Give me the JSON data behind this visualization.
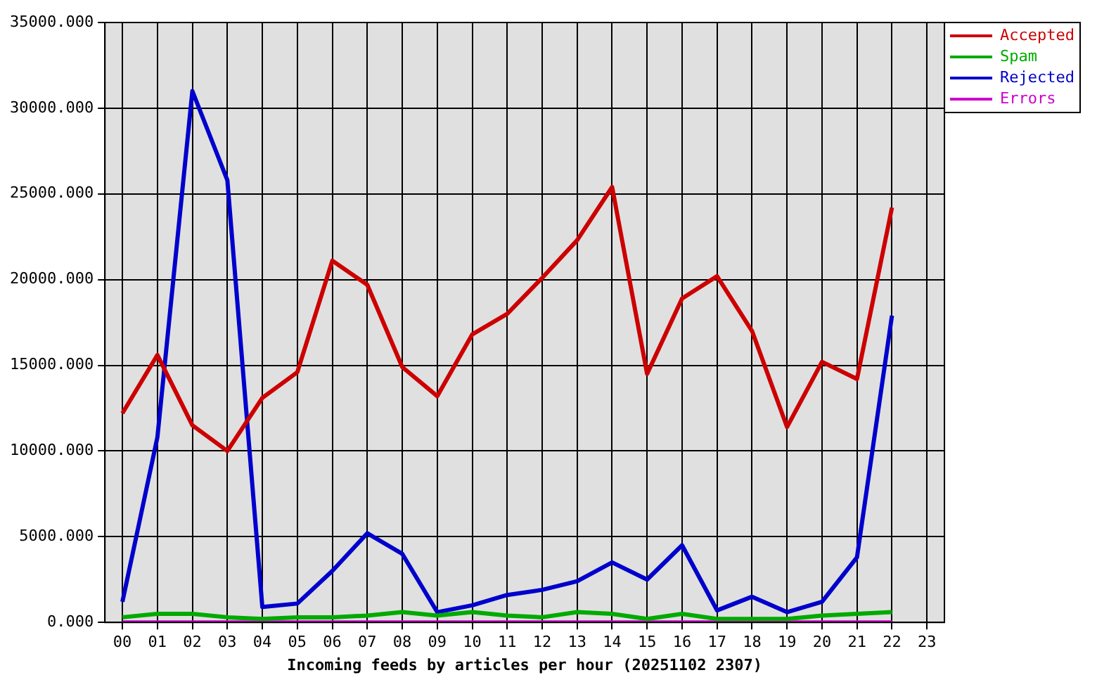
{
  "chart_data": {
    "type": "line",
    "xlabel": "Incoming feeds by articles per hour (20251102 2307)",
    "categories": [
      "00",
      "01",
      "02",
      "03",
      "04",
      "05",
      "06",
      "07",
      "08",
      "09",
      "10",
      "11",
      "12",
      "13",
      "14",
      "15",
      "16",
      "17",
      "18",
      "19",
      "20",
      "21",
      "22",
      "23"
    ],
    "series": [
      {
        "name": "Accepted",
        "color": "#cc0000",
        "values": [
          12200,
          15600,
          11500,
          10000,
          13100,
          14600,
          21100,
          19700,
          14900,
          13200,
          16800,
          18000,
          20100,
          22300,
          25400,
          14500,
          18900,
          20200,
          17000,
          11400,
          15200,
          14200,
          24200,
          null
        ]
      },
      {
        "name": "Spam",
        "color": "#00aa00",
        "values": [
          300,
          500,
          500,
          300,
          200,
          300,
          300,
          400,
          600,
          400,
          600,
          400,
          300,
          600,
          500,
          200,
          500,
          200,
          200,
          200,
          400,
          500,
          600,
          null
        ]
      },
      {
        "name": "Rejected",
        "color": "#0000cc",
        "values": [
          1200,
          10800,
          31000,
          25800,
          900,
          1100,
          3000,
          5200,
          4000,
          600,
          1000,
          1600,
          1900,
          2400,
          3500,
          2500,
          4500,
          700,
          1500,
          600,
          1200,
          3800,
          17900,
          null
        ]
      },
      {
        "name": "Errors",
        "color": "#cc00cc",
        "values": [
          0,
          0,
          0,
          0,
          0,
          0,
          0,
          0,
          0,
          0,
          0,
          0,
          0,
          0,
          0,
          0,
          0,
          0,
          0,
          0,
          0,
          0,
          0,
          null
        ]
      }
    ],
    "ylim": [
      0,
      35000
    ],
    "yticks": [
      {
        "value": 0,
        "label": "0.000"
      },
      {
        "value": 5000,
        "label": "5000.000"
      },
      {
        "value": 10000,
        "label": "10000.000"
      },
      {
        "value": 15000,
        "label": "15000.000"
      },
      {
        "value": 20000,
        "label": "20000.000"
      },
      {
        "value": 25000,
        "label": "25000.000"
      },
      {
        "value": 30000,
        "label": "30000.000"
      },
      {
        "value": 35000,
        "label": "35000.000"
      }
    ],
    "grid": true,
    "legend": "top right",
    "marker": "none",
    "line_style": "solid"
  }
}
